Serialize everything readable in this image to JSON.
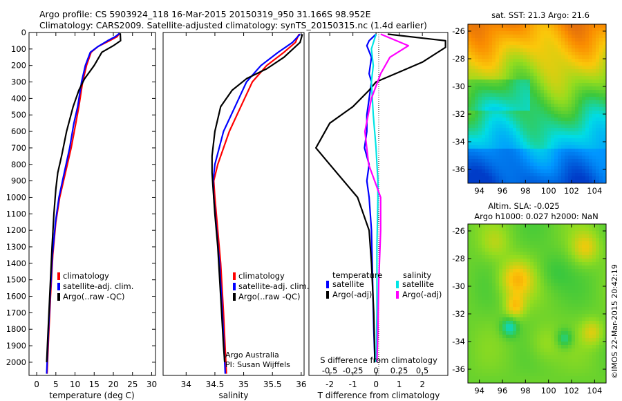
{
  "header": {
    "line1": "Argo profile: CS 5903924_118 16-Mar-2015 20150319_950 31.166S 98.952E",
    "line2": "Climatology: CARS2009. Satellite-adjusted climatology: synTS_20150315.nc (1.4d earlier)"
  },
  "colors": {
    "climatology": "#ff0000",
    "satellite": "#0000ff",
    "argo": "#000000",
    "sat_sal": "#00e5e5",
    "argo_sal": "#ff00ff"
  },
  "chart_data": [
    {
      "type": "line",
      "xlabel": "temperature (deg C)",
      "ylabel": "",
      "xlim": [
        -2,
        31
      ],
      "ylim": [
        2080,
        0
      ],
      "xticks": [
        0,
        5,
        10,
        15,
        20,
        25,
        30
      ],
      "yticks": [
        0,
        100,
        200,
        300,
        400,
        500,
        600,
        700,
        800,
        900,
        1000,
        1100,
        1200,
        1300,
        1400,
        1500,
        1600,
        1700,
        1800,
        1900,
        2000
      ],
      "legend": [
        "climatology",
        "satellite-adj. clim.",
        "Argo(..raw -QC)"
      ],
      "series": [
        {
          "name": "climatology",
          "color": "#ff0000",
          "points": [
            [
              21.6,
              5
            ],
            [
              21,
              25
            ],
            [
              19,
              50
            ],
            [
              16,
              85
            ],
            [
              14.2,
              120
            ],
            [
              13,
              200
            ],
            [
              12,
              300
            ],
            [
              11,
              450
            ],
            [
              10.2,
              550
            ],
            [
              9,
              700
            ],
            [
              7.5,
              850
            ],
            [
              6,
              1000
            ],
            [
              5,
              1150
            ],
            [
              4.2,
              1350
            ],
            [
              3.6,
              1600
            ],
            [
              3.1,
              1850
            ],
            [
              2.7,
              2070
            ]
          ]
        },
        {
          "name": "satellite-adj. clim.",
          "color": "#0000ff",
          "points": [
            [
              21.6,
              5
            ],
            [
              20.5,
              25
            ],
            [
              18.5,
              50
            ],
            [
              16,
              85
            ],
            [
              14,
              120
            ],
            [
              12.7,
              200
            ],
            [
              11.7,
              300
            ],
            [
              10.7,
              450
            ],
            [
              9.7,
              550
            ],
            [
              8.6,
              700
            ],
            [
              7.2,
              850
            ],
            [
              5.8,
              1000
            ],
            [
              4.9,
              1150
            ],
            [
              4.1,
              1350
            ],
            [
              3.5,
              1600
            ],
            [
              3,
              1850
            ],
            [
              2.6,
              2070
            ]
          ]
        },
        {
          "name": "Argo(..raw -QC)",
          "color": "#000000",
          "points": [
            [
              21.8,
              5
            ],
            [
              21.9,
              50
            ],
            [
              20,
              80
            ],
            [
              17,
              120
            ],
            [
              15,
              200
            ],
            [
              12.5,
              280
            ],
            [
              11,
              350
            ],
            [
              9.5,
              450
            ],
            [
              7.8,
              600
            ],
            [
              6.5,
              750
            ],
            [
              5.5,
              850
            ],
            [
              5,
              950
            ],
            [
              4.5,
              1100
            ],
            [
              4,
              1300
            ],
            [
              3.5,
              1550
            ],
            [
              3,
              1800
            ],
            [
              2.6,
              2000
            ]
          ]
        }
      ]
    },
    {
      "type": "line",
      "xlabel": "salinity",
      "ylabel": "",
      "xlim": [
        33.6,
        36.05
      ],
      "ylim": [
        2080,
        0
      ],
      "xticks": [
        34,
        34.5,
        35,
        35.5,
        36
      ],
      "legend": [
        "climatology",
        "satellite-adj. clim.",
        "Argo(..raw -QC)"
      ],
      "annotation": [
        "Argo Australia",
        "PI: Susan Wijffels"
      ],
      "series": [
        {
          "name": "climatology",
          "color": "#ff0000",
          "points": [
            [
              35.96,
              10
            ],
            [
              35.9,
              60
            ],
            [
              35.7,
              120
            ],
            [
              35.4,
              200
            ],
            [
              35.15,
              300
            ],
            [
              34.95,
              450
            ],
            [
              34.75,
              600
            ],
            [
              34.55,
              800
            ],
            [
              34.48,
              900
            ],
            [
              34.5,
              1000
            ],
            [
              34.55,
              1200
            ],
            [
              34.6,
              1400
            ],
            [
              34.65,
              1700
            ],
            [
              34.7,
              2070
            ]
          ]
        },
        {
          "name": "satellite-adj. clim.",
          "color": "#0000ff",
          "points": [
            [
              35.98,
              10
            ],
            [
              35.85,
              60
            ],
            [
              35.6,
              120
            ],
            [
              35.3,
              200
            ],
            [
              35.05,
              300
            ],
            [
              34.85,
              450
            ],
            [
              34.65,
              600
            ],
            [
              34.5,
              800
            ],
            [
              34.47,
              900
            ],
            [
              34.48,
              1000
            ],
            [
              34.53,
              1200
            ],
            [
              34.58,
              1400
            ],
            [
              34.63,
              1700
            ],
            [
              34.68,
              2070
            ]
          ]
        },
        {
          "name": "Argo(..raw -QC)",
          "color": "#000000",
          "points": [
            [
              36.02,
              10
            ],
            [
              35.98,
              60
            ],
            [
              35.7,
              150
            ],
            [
              35.4,
              220
            ],
            [
              35.05,
              280
            ],
            [
              34.8,
              350
            ],
            [
              34.6,
              450
            ],
            [
              34.5,
              600
            ],
            [
              34.45,
              750
            ],
            [
              34.45,
              850
            ],
            [
              34.47,
              950
            ],
            [
              34.5,
              1100
            ],
            [
              34.55,
              1300
            ],
            [
              34.6,
              1600
            ],
            [
              34.65,
              1900
            ],
            [
              34.67,
              2000
            ]
          ]
        }
      ]
    },
    {
      "type": "line",
      "xlabel": "T difference from climatology",
      "ylabel": "",
      "top_axis_label": "S difference from climatology",
      "xlim": [
        -2.9,
        3.1
      ],
      "ylim": [
        2080,
        0
      ],
      "xticks": [
        -2,
        -1,
        0,
        1,
        2
      ],
      "s_xticks": [
        -0.5,
        -0.25,
        0,
        0.25,
        0.5
      ],
      "s_tick_labels": [
        "-0.5",
        "-0.25",
        "0",
        "0.25",
        "0.5"
      ],
      "legend_titles": [
        "temperature",
        "salinity"
      ],
      "legend": [
        "satellite",
        "Argo(-adj)",
        "satellite",
        "Argo(-adj)"
      ],
      "series": [
        {
          "name": "T satellite",
          "color": "#0000ff",
          "points": [
            [
              0,
              10
            ],
            [
              -0.3,
              50
            ],
            [
              -0.4,
              80
            ],
            [
              -0.2,
              150
            ],
            [
              -0.3,
              250
            ],
            [
              -0.2,
              300
            ],
            [
              -0.4,
              500
            ],
            [
              -0.4,
              600
            ],
            [
              -0.5,
              700
            ],
            [
              -0.3,
              800
            ],
            [
              -0.4,
              900
            ],
            [
              -0.3,
              1000
            ],
            [
              -0.2,
              1200
            ],
            [
              -0.15,
              1500
            ],
            [
              -0.1,
              1800
            ],
            [
              -0.05,
              2000
            ]
          ]
        },
        {
          "name": "T Argo(-adj)",
          "color": "#000000",
          "points": [
            [
              0.5,
              10
            ],
            [
              3,
              50
            ],
            [
              3,
              70
            ],
            [
              3,
              90
            ],
            [
              2,
              180
            ],
            [
              1,
              240
            ],
            [
              0,
              300
            ],
            [
              -0.3,
              350
            ],
            [
              -1,
              450
            ],
            [
              -2,
              550
            ],
            [
              -2.6,
              700
            ],
            [
              -2,
              800
            ],
            [
              -0.8,
              1000
            ],
            [
              -0.3,
              1200
            ],
            [
              -0.2,
              1400
            ],
            [
              -0.1,
              1700
            ],
            [
              -0.05,
              2000
            ]
          ]
        },
        {
          "name": "S satellite",
          "color": "#00e5e5",
          "points": [
            [
              0,
              10
            ],
            [
              -0.05,
              100
            ],
            [
              -0.03,
              200
            ],
            [
              -0.05,
              300
            ],
            [
              -0.03,
              500
            ],
            [
              0,
              700
            ],
            [
              0.02,
              900
            ],
            [
              0.02,
              1000
            ],
            [
              0.01,
              1300
            ],
            [
              0.01,
              1700
            ],
            [
              0,
              2000
            ]
          ]
        },
        {
          "name": "S Argo(-adj)",
          "color": "#ff00ff",
          "points": [
            [
              0.05,
              10
            ],
            [
              0.35,
              80
            ],
            [
              0.15,
              150
            ],
            [
              0.05,
              250
            ],
            [
              -0.05,
              400
            ],
            [
              -0.12,
              600
            ],
            [
              -0.08,
              800
            ],
            [
              0.05,
              1000
            ],
            [
              0.05,
              1200
            ],
            [
              0.03,
              1500
            ],
            [
              0.02,
              1800
            ],
            [
              0.01,
              2000
            ]
          ]
        }
      ]
    },
    {
      "type": "heatmap",
      "title": "sat. SST: 21.3 Argo: 21.6",
      "xlim": [
        93,
        105
      ],
      "ylim": [
        -37,
        -25.5
      ],
      "xticks": [
        94,
        96,
        98,
        100,
        102,
        104
      ],
      "yticks": [
        -26,
        -28,
        -30,
        -32,
        -34,
        -36
      ]
    },
    {
      "type": "heatmap",
      "title_line1": "Altim. SLA: -0.025",
      "title_line2": "Argo h1000: 0.027 h2000: NaN",
      "xlim": [
        93,
        105
      ],
      "ylim": [
        -37,
        -25.5
      ],
      "xticks": [
        94,
        96,
        98,
        100,
        102,
        104
      ],
      "yticks": [
        -26,
        -28,
        -30,
        -32,
        -34,
        -36
      ]
    }
  ],
  "footer": {
    "credit": "©IMOS 22-Mar-2015 20:42:19"
  }
}
